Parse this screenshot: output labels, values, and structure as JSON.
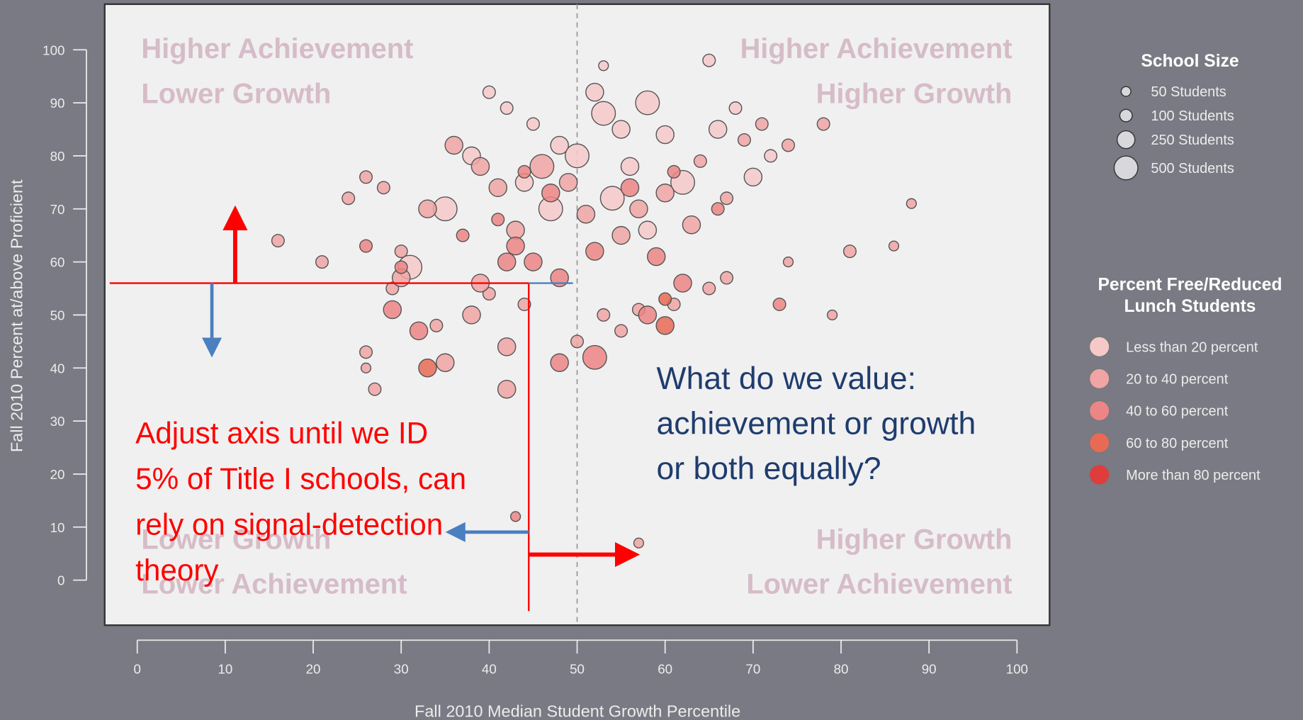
{
  "chart_data": {
    "type": "scatter",
    "xlabel": "Fall 2010 Median Student Growth Percentile",
    "ylabel": "Fall 2010 Percent at/above Proficient",
    "xlim": [
      -3.7,
      103.7
    ],
    "ylim": [
      -8.5,
      108.6
    ],
    "xticks": [
      0,
      10,
      20,
      30,
      40,
      50,
      60,
      70,
      80,
      90,
      100
    ],
    "yticks": [
      0,
      10,
      20,
      30,
      40,
      50,
      60,
      70,
      80,
      90,
      100
    ],
    "reference_x": 50,
    "cutoff": {
      "x": 44.5,
      "y": 56
    },
    "quadrant_labels": [
      {
        "lines": [
          "Higher Achievement",
          "Lower Growth"
        ]
      },
      {
        "lines": [
          "Higher Achievement",
          "Higher Growth"
        ]
      },
      {
        "lines": [
          "Lower Growth",
          "Lower Achievement"
        ]
      },
      {
        "lines": [
          "Higher Growth",
          "Lower Achievement"
        ]
      }
    ],
    "annotation_red": [
      "Adjust axis until we ID",
      "5% of Title I schools, can",
      "rely on signal-detection",
      "theory"
    ],
    "annotation_blue": [
      "What do we value:",
      "achievement or growth",
      "or both equally?"
    ],
    "size_legend": {
      "title": "School Size",
      "entries": [
        {
          "label": "50 Students",
          "size": 50
        },
        {
          "label": "100 Students",
          "size": 100
        },
        {
          "label": "250 Students",
          "size": 250
        },
        {
          "label": "500 Students",
          "size": 500
        }
      ]
    },
    "color_legend_title": [
      "Percent Free/Reduced",
      "Lunch Students"
    ],
    "series": [
      {
        "name": "Less than 20 percent",
        "color": "#f6c9c9",
        "x": [
          52,
          53,
          55,
          58,
          60,
          48,
          45,
          50,
          62,
          56,
          40,
          42,
          53,
          65,
          68,
          72,
          44,
          47,
          54,
          58,
          35,
          31,
          38,
          66,
          70
        ],
        "values": [
          92,
          88,
          85,
          90,
          84,
          82,
          86,
          80,
          75,
          78,
          92,
          89,
          97,
          98,
          89,
          80,
          75,
          70,
          72,
          66,
          70,
          59,
          80,
          85,
          76
        ],
        "sizes": [
          250,
          500,
          250,
          500,
          250,
          250,
          100,
          500,
          500,
          250,
          100,
          100,
          50,
          100,
          100,
          100,
          250,
          500,
          500,
          250,
          500,
          500,
          250,
          250,
          250
        ]
      },
      {
        "name": "20 to 40 percent",
        "color": "#f0a4a4",
        "x": [
          30,
          33,
          36,
          39,
          41,
          43,
          46,
          49,
          51,
          55,
          57,
          60,
          63,
          64,
          67,
          69,
          71,
          74,
          78,
          88,
          86,
          81,
          74,
          79,
          65,
          26,
          24,
          21,
          16,
          28,
          29,
          35,
          42,
          42,
          38,
          40,
          27,
          26,
          26,
          50,
          53,
          55,
          57,
          67,
          61,
          57,
          44,
          34,
          39,
          30
        ],
        "values": [
          62,
          70,
          82,
          78,
          74,
          66,
          78,
          75,
          69,
          65,
          70,
          73,
          67,
          79,
          72,
          83,
          86,
          82,
          86,
          71,
          63,
          62,
          60,
          50,
          55,
          76,
          72,
          60,
          64,
          74,
          55,
          41,
          44,
          36,
          50,
          54,
          36,
          43,
          40,
          45,
          50,
          47,
          51,
          57,
          52,
          7,
          52,
          48,
          56,
          57
        ],
        "sizes": [
          100,
          250,
          250,
          250,
          250,
          250,
          500,
          250,
          250,
          250,
          250,
          250,
          250,
          100,
          100,
          100,
          100,
          100,
          100,
          50,
          50,
          100,
          50,
          50,
          100,
          100,
          100,
          100,
          100,
          100,
          100,
          250,
          250,
          250,
          250,
          100,
          100,
          100,
          50,
          100,
          100,
          100,
          100,
          100,
          100,
          50,
          100,
          100,
          250,
          250
        ]
      },
      {
        "name": "40 to 60 percent",
        "color": "#ec8585",
        "x": [
          43,
          45,
          48,
          42,
          37,
          41,
          52,
          59,
          62,
          52,
          48,
          58,
          32,
          29,
          30,
          44,
          47,
          56,
          61,
          66,
          73,
          26,
          43
        ],
        "values": [
          63,
          60,
          57,
          60,
          65,
          68,
          62,
          61,
          56,
          42,
          41,
          50,
          47,
          51,
          59,
          77,
          73,
          74,
          77,
          70,
          52,
          63,
          12
        ],
        "sizes": [
          250,
          250,
          250,
          250,
          100,
          100,
          250,
          250,
          250,
          500,
          250,
          250,
          250,
          250,
          100,
          100,
          250,
          250,
          100,
          100,
          100,
          100,
          50
        ]
      },
      {
        "name": "60 to 80 percent",
        "color": "#e86a55",
        "x": [
          33,
          60,
          60
        ],
        "values": [
          40,
          48,
          53
        ],
        "sizes": [
          250,
          250,
          100
        ]
      },
      {
        "name": "More than 80 percent",
        "color": "#e03c3c",
        "x": [],
        "values": [],
        "sizes": []
      }
    ]
  }
}
